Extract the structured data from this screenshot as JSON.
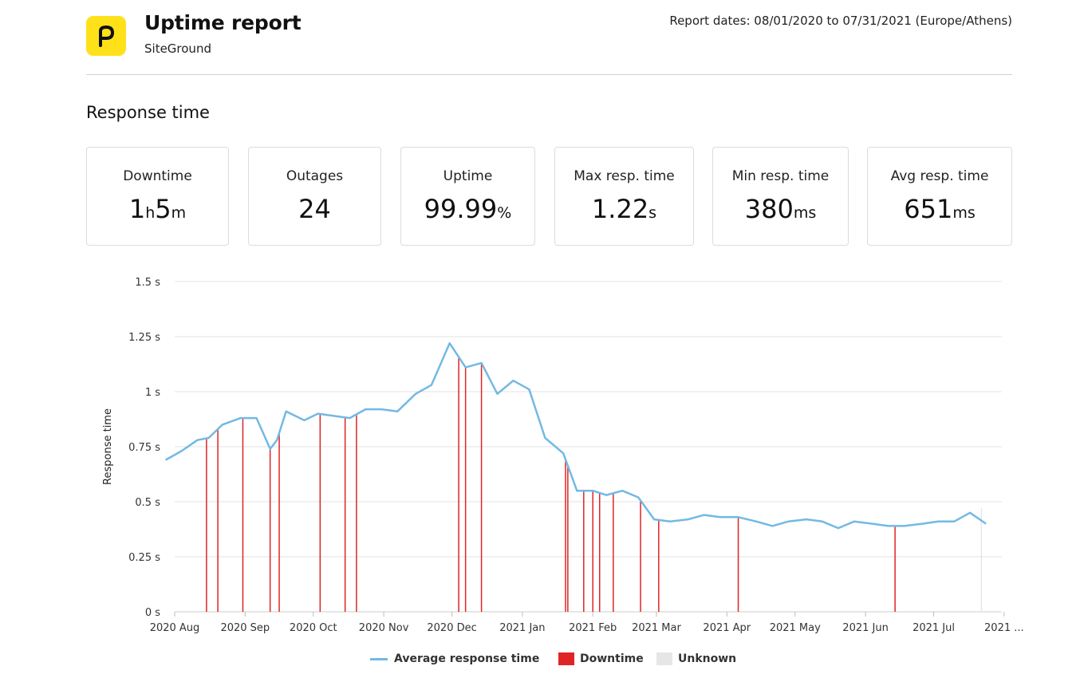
{
  "header": {
    "title": "Uptime report",
    "subtitle": "SiteGround",
    "report_dates": "Report dates: 08/01/2020 to 07/31/2021 (Europe/Athens)",
    "logo_icon": "p-letter-logo-icon",
    "logo_color": "#ffe11a"
  },
  "section_title": "Response time",
  "stats": [
    {
      "label": "Downtime",
      "parts": [
        {
          "v": "1",
          "u": false
        },
        {
          "v": "h",
          "u": true
        },
        {
          "v": "5",
          "u": false
        },
        {
          "v": "m",
          "u": true
        }
      ]
    },
    {
      "label": "Outages",
      "parts": [
        {
          "v": "24",
          "u": false
        }
      ]
    },
    {
      "label": "Uptime",
      "parts": [
        {
          "v": "99.99",
          "u": false
        },
        {
          "v": "%",
          "u": true
        }
      ]
    },
    {
      "label": "Max resp. time",
      "parts": [
        {
          "v": "1.22",
          "u": false
        },
        {
          "v": "s",
          "u": true
        }
      ]
    },
    {
      "label": "Min resp. time",
      "parts": [
        {
          "v": "380",
          "u": false
        },
        {
          "v": "ms",
          "u": true
        }
      ]
    },
    {
      "label": "Avg resp. time",
      "parts": [
        {
          "v": "651",
          "u": false
        },
        {
          "v": "ms",
          "u": true
        }
      ]
    }
  ],
  "chart_data": {
    "type": "line",
    "ylabel": "Response time",
    "ylim": [
      0,
      1.5
    ],
    "y_ticks": [
      {
        "value": 0,
        "label": "0  s"
      },
      {
        "value": 0.25,
        "label": "0.25  s"
      },
      {
        "value": 0.5,
        "label": "0.5  s"
      },
      {
        "value": 0.75,
        "label": "0.75  s"
      },
      {
        "value": 1,
        "label": "1  s"
      },
      {
        "value": 1.25,
        "label": "1.25  s"
      },
      {
        "value": 1.5,
        "label": "1.5  s"
      }
    ],
    "xlim": [
      "2020-08-01",
      "2021-07-31"
    ],
    "x_ticks": [
      {
        "date": "2020-08-01",
        "label": "2020 Aug"
      },
      {
        "date": "2020-09-01",
        "label": "2020 Sep"
      },
      {
        "date": "2020-10-01",
        "label": "2020 Oct"
      },
      {
        "date": "2020-11-01",
        "label": "2020 Nov"
      },
      {
        "date": "2020-12-01",
        "label": "2020 Dec"
      },
      {
        "date": "2021-01-01",
        "label": "2021 Jan"
      },
      {
        "date": "2021-02-01",
        "label": "2021 Feb"
      },
      {
        "date": "2021-03-01",
        "label": "2021 Mar"
      },
      {
        "date": "2021-04-01",
        "label": "2021 Apr"
      },
      {
        "date": "2021-05-01",
        "label": "2021 May"
      },
      {
        "date": "2021-06-01",
        "label": "2021 Jun"
      },
      {
        "date": "2021-07-01",
        "label": "2021 Jul"
      },
      {
        "date": "2021-08-01",
        "label": "2021 ..."
      }
    ],
    "grid": true,
    "legend_position": "bottom",
    "series": [
      {
        "name": "Average response time",
        "color": "#73b9e3",
        "points": [
          [
            "2020-07-28",
            0.69
          ],
          [
            "2020-08-04",
            0.73
          ],
          [
            "2020-08-11",
            0.78
          ],
          [
            "2020-08-16",
            0.79
          ],
          [
            "2020-08-22",
            0.85
          ],
          [
            "2020-08-30",
            0.88
          ],
          [
            "2020-09-06",
            0.88
          ],
          [
            "2020-09-12",
            0.74
          ],
          [
            "2020-09-15",
            0.78
          ],
          [
            "2020-09-19",
            0.91
          ],
          [
            "2020-09-27",
            0.87
          ],
          [
            "2020-10-03",
            0.9
          ],
          [
            "2020-10-10",
            0.89
          ],
          [
            "2020-10-17",
            0.88
          ],
          [
            "2020-10-24",
            0.92
          ],
          [
            "2020-10-31",
            0.92
          ],
          [
            "2020-11-07",
            0.91
          ],
          [
            "2020-11-15",
            0.99
          ],
          [
            "2020-11-22",
            1.03
          ],
          [
            "2020-11-30",
            1.22
          ],
          [
            "2020-12-07",
            1.11
          ],
          [
            "2020-12-14",
            1.13
          ],
          [
            "2020-12-21",
            0.99
          ],
          [
            "2020-12-28",
            1.05
          ],
          [
            "2021-01-04",
            1.01
          ],
          [
            "2021-01-11",
            0.79
          ],
          [
            "2021-01-19",
            0.72
          ],
          [
            "2021-01-25",
            0.55
          ],
          [
            "2021-02-01",
            0.55
          ],
          [
            "2021-02-07",
            0.53
          ],
          [
            "2021-02-14",
            0.55
          ],
          [
            "2021-02-21",
            0.52
          ],
          [
            "2021-02-28",
            0.42
          ],
          [
            "2021-03-07",
            0.41
          ],
          [
            "2021-03-15",
            0.42
          ],
          [
            "2021-03-22",
            0.44
          ],
          [
            "2021-03-29",
            0.43
          ],
          [
            "2021-04-06",
            0.43
          ],
          [
            "2021-04-14",
            0.41
          ],
          [
            "2021-04-21",
            0.39
          ],
          [
            "2021-04-28",
            0.41
          ],
          [
            "2021-05-06",
            0.42
          ],
          [
            "2021-05-13",
            0.41
          ],
          [
            "2021-05-20",
            0.38
          ],
          [
            "2021-05-27",
            0.41
          ],
          [
            "2021-06-04",
            0.4
          ],
          [
            "2021-06-11",
            0.39
          ],
          [
            "2021-06-18",
            0.39
          ],
          [
            "2021-06-26",
            0.4
          ],
          [
            "2021-07-03",
            0.41
          ],
          [
            "2021-07-10",
            0.41
          ],
          [
            "2021-07-17",
            0.45
          ],
          [
            "2021-07-24",
            0.4
          ]
        ]
      },
      {
        "name": "Downtime",
        "color": "#e02424",
        "events": [
          "2020-08-15",
          "2020-08-20",
          "2020-08-31",
          "2020-09-12",
          "2020-09-16",
          "2020-10-04",
          "2020-10-15",
          "2020-10-20",
          "2020-12-04",
          "2020-12-07",
          "2020-12-14",
          "2021-01-20",
          "2021-01-21",
          "2021-01-28",
          "2021-02-01",
          "2021-02-04",
          "2021-02-10",
          "2021-02-22",
          "2021-03-02",
          "2021-04-06",
          "2021-06-14"
        ]
      },
      {
        "name": "Unknown",
        "color": "#e6e6e6",
        "events": [
          "2021-07-22"
        ]
      }
    ]
  }
}
